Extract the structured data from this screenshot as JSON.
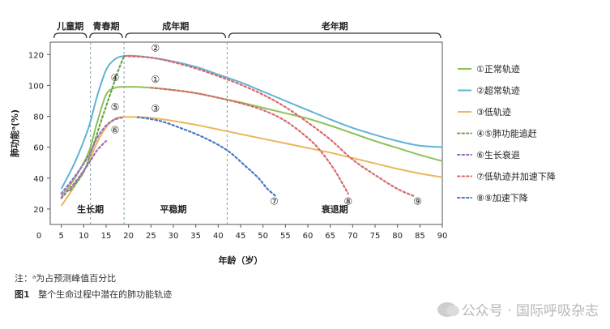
{
  "chart_data": {
    "type": "line",
    "xlabel": "年龄（岁）",
    "ylabel": "肺功能ᵃ(%)",
    "xlim": [
      0,
      90
    ],
    "ylim": [
      10,
      128
    ],
    "xticks": [
      0,
      5,
      10,
      15,
      20,
      25,
      30,
      35,
      40,
      45,
      50,
      55,
      60,
      65,
      70,
      75,
      80,
      85,
      90
    ],
    "yticks": [
      20,
      40,
      60,
      80,
      100,
      120
    ],
    "grid": false,
    "legend_position": "right",
    "stages": [
      {
        "label": "儿童期",
        "start": 3,
        "end": 11
      },
      {
        "label": "青春期",
        "start": 11,
        "end": 19
      },
      {
        "label": "成年期",
        "start": 19,
        "end": 42
      },
      {
        "label": "老年期",
        "start": 42,
        "end": 90
      }
    ],
    "phases": [
      {
        "label": "生长期",
        "x": 11.5
      },
      {
        "label": "平稳期",
        "x": 30
      },
      {
        "label": "衰退期",
        "x": 66
      }
    ],
    "dividers": [
      11.5,
      19,
      42
    ],
    "series": [
      {
        "name": "①正常轨迹",
        "color": "#8ec15a",
        "style": "solid",
        "marker": "①",
        "marker_at": [
          26,
          104
        ],
        "x": [
          5,
          8,
          11,
          13,
          15,
          17,
          19,
          22,
          25,
          30,
          35,
          40,
          45,
          50,
          55,
          60,
          65,
          70,
          75,
          80,
          85,
          90
        ],
        "y": [
          28,
          40,
          56,
          76,
          94,
          98.5,
          99,
          99,
          98.5,
          97,
          95,
          92,
          89,
          85.5,
          82,
          78.5,
          74,
          69,
          64,
          59.5,
          55,
          51
        ]
      },
      {
        "name": "②超常轨迹",
        "color": "#5fb3d6",
        "style": "solid",
        "marker": "②",
        "marker_at": [
          26,
          124
        ],
        "x": [
          5,
          8,
          11,
          13,
          15,
          17,
          19,
          22,
          25,
          30,
          35,
          40,
          45,
          50,
          55,
          60,
          65,
          70,
          75,
          80,
          85,
          90
        ],
        "y": [
          33,
          50,
          72,
          93,
          110,
          117,
          119,
          119,
          118,
          115.5,
          112,
          107,
          102,
          96,
          90,
          84,
          78,
          72.5,
          68,
          64,
          61,
          60
        ]
      },
      {
        "name": "③低轨迹",
        "color": "#eab75e",
        "style": "solid",
        "marker": "③",
        "marker_at": [
          26,
          85
        ],
        "x": [
          5,
          8,
          11,
          13,
          15,
          17,
          19,
          22,
          25,
          30,
          35,
          40,
          45,
          50,
          55,
          60,
          65,
          70,
          75,
          80,
          85,
          90
        ],
        "y": [
          22,
          35,
          50,
          63,
          73,
          78.5,
          79.5,
          79.5,
          79,
          77,
          74.5,
          71.5,
          68.5,
          65.5,
          62.5,
          59.5,
          56.5,
          53,
          49.5,
          46,
          43,
          40.5
        ]
      },
      {
        "name": "④⑤肺功能追赶",
        "color": "#6aa84f",
        "style": "dotted",
        "marker": "④",
        "marker_at": [
          17,
          105
        ],
        "x": [
          7,
          10,
          12,
          14,
          16,
          17.5,
          19
        ],
        "y": [
          32,
          44,
          60,
          78,
          95,
          108,
          119
        ]
      },
      {
        "name": "⑥生长衰退",
        "color": "#9b6bb8",
        "style": "dotted",
        "marker": "⑥",
        "marker_at": [
          17,
          71
        ],
        "x": [
          5,
          8,
          11,
          13,
          15,
          17,
          19
        ],
        "y": [
          30,
          41,
          54,
          66,
          74,
          78,
          79.5
        ]
      },
      {
        "name": "⑦低轨迹并加速下降",
        "color": "#d9686a",
        "style": "dotted",
        "marker": "⑤",
        "marker_at": [
          17,
          86
        ],
        "x": [
          19,
          25,
          30,
          35,
          40,
          45,
          50,
          55,
          60,
          65,
          70,
          75,
          80,
          84
        ],
        "y": [
          119,
          118,
          115,
          111,
          106,
          100.5,
          94,
          86,
          76,
          65,
          52,
          42,
          33,
          28
        ]
      },
      {
        "name": "⑧⑨加速下降",
        "color": "#4a78c5",
        "style": "dotted",
        "marker": "⑦",
        "marker_at": [
          52.5,
          25
        ],
        "x": [
          22,
          27,
          32,
          37,
          42,
          46,
          49,
          51,
          53
        ],
        "y": [
          79.5,
          77,
          72,
          66,
          58,
          48,
          40,
          33,
          28
        ]
      }
    ],
    "extra_curves": [
      {
        "color": "#d9686a",
        "style": "dotted",
        "marker": "⑧",
        "marker_at": [
          69,
          25
        ],
        "x": [
          25,
          30,
          35,
          40,
          45,
          50,
          55,
          60,
          63,
          66,
          69
        ],
        "y": [
          98.5,
          97,
          95,
          92,
          88.5,
          84,
          77,
          66,
          57,
          45,
          30
        ]
      },
      {
        "color": "#9b6bb8",
        "style": "dotted",
        "x": [
          5,
          8,
          11,
          13,
          15
        ],
        "y": [
          27,
          37,
          49,
          58,
          64
        ]
      }
    ],
    "legend_entries": [
      {
        "label": "①正常轨迹",
        "color": "#8ec15a",
        "style": "solid"
      },
      {
        "label": "②超常轨迹",
        "color": "#5fb3d6",
        "style": "solid"
      },
      {
        "label": "③低轨迹",
        "color": "#eab75e",
        "style": "solid"
      },
      {
        "label": "④⑤肺功能追赶",
        "color": "#6aa84f",
        "style": "dotted"
      },
      {
        "label": "⑥生长衰退",
        "color": "#9b6bb8",
        "style": "dotted"
      },
      {
        "label": "⑦低轨迹并加速下降",
        "color": "#d9686a",
        "style": "dotted"
      },
      {
        "label": "⑧⑨加速下降",
        "color": "#4a78c5",
        "style": "dotted"
      }
    ],
    "markers_extra": [
      {
        "text": "⑨",
        "x": 84.5,
        "y": 25
      }
    ]
  },
  "footnote": "注：ᵃ为占预测峰值百分比",
  "figure_caption_label": "图1",
  "figure_caption_text": "整个生命过程中潜在的肺功能轨迹",
  "watermark": "公众号 · 国际呼吸杂志"
}
